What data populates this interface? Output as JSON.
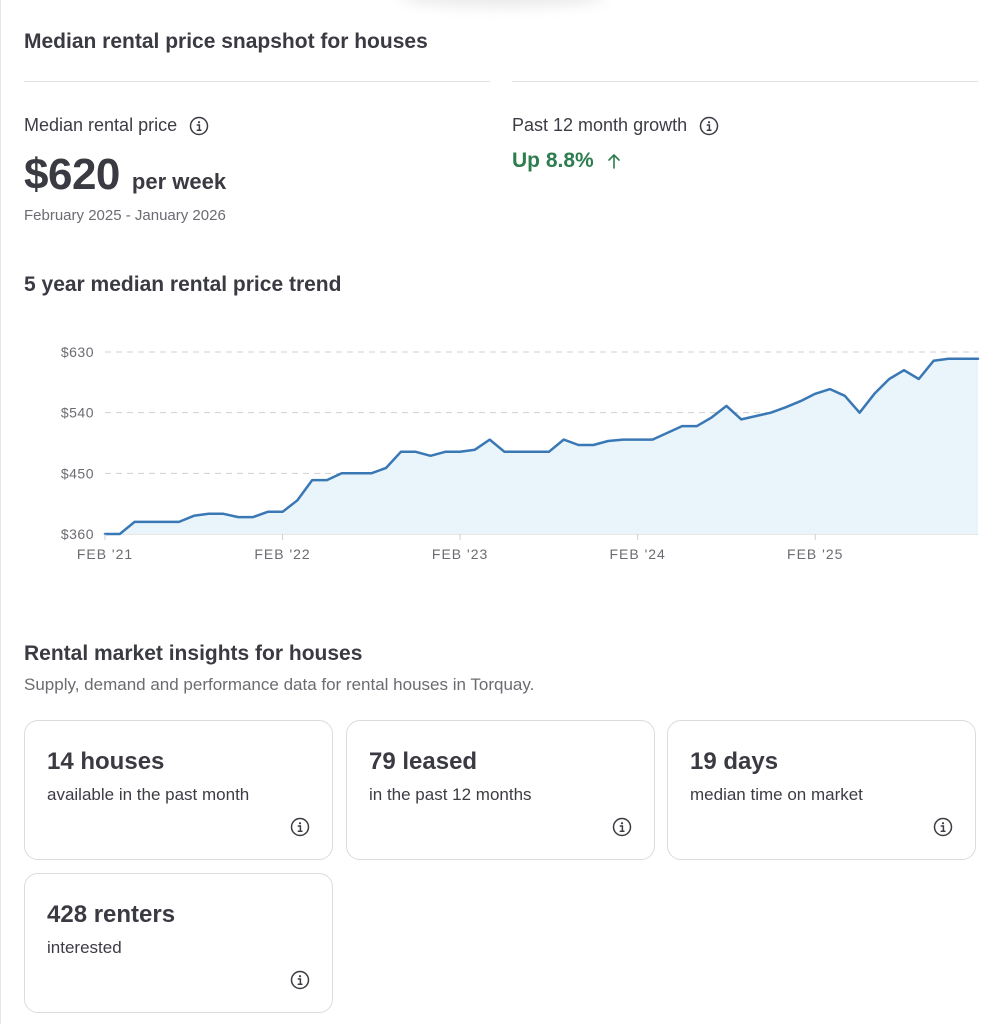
{
  "snapshot": {
    "title": "Median rental price snapshot for houses",
    "median": {
      "label": "Median rental price",
      "value": "$620",
      "unit": "per week",
      "period": "February 2025 - January 2026"
    },
    "growth": {
      "label": "Past 12 month growth",
      "value": "Up 8.8%",
      "direction": "up",
      "color": "#2e7d4f"
    }
  },
  "trend": {
    "title": "5 year median rental price trend"
  },
  "chart_data": {
    "type": "area",
    "title": "5 year median rental price trend",
    "xlabel": "",
    "ylabel": "",
    "y_ticks": [
      360,
      450,
      540,
      630
    ],
    "y_tick_labels": [
      "$360",
      "$450",
      "$540",
      "$630"
    ],
    "ylim": [
      360,
      630
    ],
    "x_tick_labels": [
      "FEB '21",
      "FEB '22",
      "FEB '23",
      "FEB '24",
      "FEB '25"
    ],
    "x_start": "2021-02",
    "x_end": "2026-01",
    "grid": "horizontal dashed",
    "line_color": "#3a78b5",
    "fill_color": "#e9f5fb",
    "series": [
      {
        "values": [
          360,
          360,
          378,
          378,
          378,
          378,
          387,
          390,
          390,
          385,
          385,
          393,
          393,
          410,
          440,
          440,
          450,
          450,
          450,
          458,
          482,
          482,
          476,
          482,
          482,
          485,
          500,
          482,
          482,
          482,
          482,
          500,
          492,
          492,
          498,
          500,
          500,
          500,
          510,
          520,
          520,
          533,
          550,
          530,
          535,
          540,
          548,
          557,
          568,
          575,
          565,
          540,
          568,
          590,
          603,
          590,
          617,
          620,
          620,
          620
        ]
      }
    ]
  },
  "insights": {
    "title": "Rental market insights for houses",
    "subtitle": "Supply, demand and performance data for rental houses in Torquay.",
    "cards": [
      {
        "title": "14 houses",
        "desc": "available in the past month"
      },
      {
        "title": "79 leased",
        "desc": "in the past 12 months"
      },
      {
        "title": "19 days",
        "desc": "median time on market"
      },
      {
        "title": "428 renters",
        "desc": "interested"
      }
    ]
  }
}
